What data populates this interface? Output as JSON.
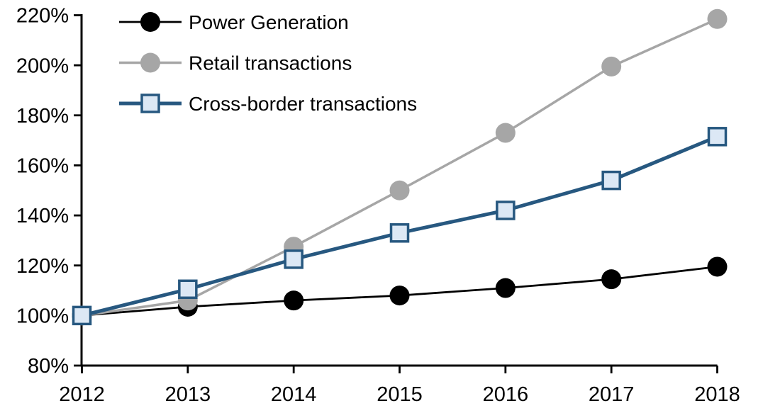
{
  "chart_data": {
    "type": "line",
    "title": "",
    "xlabel": "",
    "ylabel": "",
    "categories": [
      "2012",
      "2013",
      "2014",
      "2015",
      "2016",
      "2017",
      "2018"
    ],
    "series": [
      {
        "name": "Power Generation",
        "slug": "power-generation",
        "marker": "circle",
        "color": "#000000",
        "marker_fill": "#000000",
        "line_width": 2.8,
        "values": [
          100,
          103.5,
          106,
          108,
          111,
          114.5,
          119.5
        ]
      },
      {
        "name": "Retail transactions",
        "slug": "retail-transactions",
        "marker": "circle",
        "color": "#a6a6a6",
        "marker_fill": "#a6a6a6",
        "line_width": 3.5,
        "values": [
          100,
          106,
          127.5,
          150,
          173,
          199.5,
          218.5
        ]
      },
      {
        "name": "Cross-border transactions",
        "slug": "cross-border-transactions",
        "marker": "square",
        "color": "#275880",
        "marker_fill": "#dce8f5",
        "line_width": 5,
        "values": [
          100,
          110.5,
          122.5,
          133,
          142,
          154,
          171.5
        ]
      }
    ],
    "ylim": [
      80,
      220
    ],
    "y_tick_step": 20,
    "y_tick_labels": [
      "80%",
      "100%",
      "120%",
      "140%",
      "160%",
      "180%",
      "200%",
      "220%"
    ],
    "x_tick_labels": [
      "2012",
      "2013",
      "2014",
      "2015",
      "2016",
      "2017",
      "2018"
    ],
    "legend_position": "top-left",
    "grid": false,
    "axis_color": "#000000"
  }
}
